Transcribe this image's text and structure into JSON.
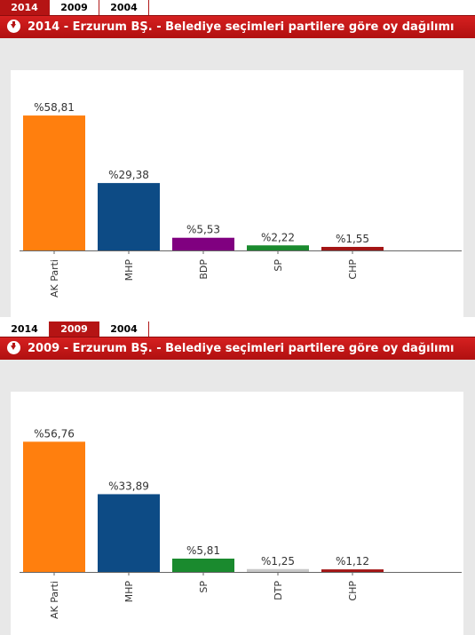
{
  "tabs": [
    "2014",
    "2009",
    "2004"
  ],
  "panels": [
    {
      "title": "2014 - Erzurum BŞ. - Belediye seçimleri partilere göre oy dağılımı",
      "active_tab": "2014",
      "chart_data": {
        "type": "bar",
        "categories": [
          "AK Parti",
          "MHP",
          "BDP",
          "SP",
          "CHP"
        ],
        "values": [
          58.81,
          29.38,
          5.53,
          2.22,
          1.55
        ],
        "data_labels": [
          "%58,81",
          "%29,38",
          "%5,53",
          "%2,22",
          "%1,55"
        ],
        "colors": [
          "#ff7f0e",
          "#0d4b85",
          "#800080",
          "#1a8a2e",
          "#a31515"
        ],
        "title": "",
        "xlabel": "",
        "ylabel": "",
        "grid": false,
        "legend": "none"
      }
    },
    {
      "title": "2009 - Erzurum BŞ. - Belediye seçimleri partilere göre oy dağılımı",
      "active_tab": "2009",
      "chart_data": {
        "type": "bar",
        "categories": [
          "AK Parti",
          "MHP",
          "SP",
          "DTP",
          "CHP"
        ],
        "values": [
          56.76,
          33.89,
          5.81,
          1.25,
          1.12
        ],
        "data_labels": [
          "%56,76",
          "%33,89",
          "%5,81",
          "%1,25",
          "%1,12"
        ],
        "colors": [
          "#ff7f0e",
          "#0d4b85",
          "#1a8a2e",
          "#c8c8c8",
          "#a31515"
        ],
        "title": "",
        "xlabel": "",
        "ylabel": "",
        "grid": false,
        "legend": "none"
      }
    }
  ]
}
